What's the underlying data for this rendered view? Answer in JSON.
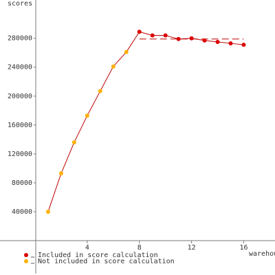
{
  "chart_data": {
    "type": "line",
    "y_label": "scores",
    "x_label": "warehouses",
    "series": [
      {
        "name": "Included in score calculation",
        "color": "#dd0000",
        "x": [
          8,
          9,
          10,
          11,
          12,
          13,
          14,
          15,
          16
        ],
        "values": [
          289000,
          284000,
          284000,
          279000,
          280000,
          277000,
          275000,
          273000,
          271000
        ]
      },
      {
        "name": "Not included in score calculation",
        "color": "#ffb000",
        "x": [
          1,
          2,
          3,
          4,
          5,
          6,
          7
        ],
        "values": [
          40000,
          93000,
          136000,
          173000,
          207000,
          241000,
          261000
        ]
      }
    ],
    "line_color": "#c00000",
    "score": 279000,
    "score_x": [
      8,
      16
    ],
    "xlim": [
      0,
      18.4
    ],
    "ylim": [
      0,
      333000
    ],
    "xticks": [
      4,
      8,
      12,
      16
    ],
    "yticks": [
      40000,
      80000,
      120000,
      160000,
      200000,
      240000,
      280000
    ]
  }
}
